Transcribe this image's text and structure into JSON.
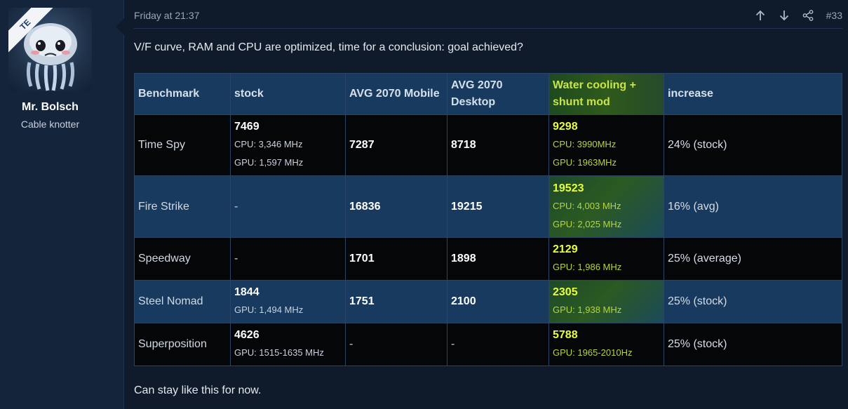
{
  "post": {
    "date": "Friday at 21:37",
    "number": "#33",
    "intro": "V/F curve, RAM and CPU are optimized, time for a conclusion: goal achieved?",
    "outro": "Can stay like this for now."
  },
  "user": {
    "name": "Mr. Bolsch",
    "title": "Cable knotter",
    "avatar_badge": "TE"
  },
  "icons": {
    "up": "arrow-up-icon",
    "down": "arrow-down-icon",
    "share": "share-icon"
  },
  "colors": {
    "background": "#0f1a2b",
    "table_blue": "#173a5e",
    "table_dark": "#050608",
    "highlight": "#d8f23c"
  },
  "table": {
    "headers": [
      "Benchmark",
      "stock",
      "AVG 2070 Mobile",
      "AVG 2070 Desktop",
      "Water cooling + shunt mod",
      "increase"
    ],
    "rows": [
      {
        "benchmark": "Time Spy",
        "stock": {
          "main": "7469",
          "sub1": "CPU: 3,346 MHz",
          "sub2": "GPU: 1,597 MHz"
        },
        "mobile": "7287",
        "desktop": "8718",
        "water": {
          "main": "9298",
          "sub1": "CPU: 3990MHz",
          "sub2": "GPU: 1963MHz"
        },
        "increase": "24% (stock)"
      },
      {
        "benchmark": "Fire Strike",
        "stock": {
          "main": "-"
        },
        "mobile": "16836",
        "desktop": "19215",
        "water": {
          "main": "19523",
          "sub1": "CPU: 4,003 MHz",
          "sub2": "GPU: 2,025 MHz"
        },
        "increase": "16% (avg)"
      },
      {
        "benchmark": "Speedway",
        "stock": {
          "main": "-"
        },
        "mobile": "1701",
        "desktop": "1898",
        "water": {
          "main": "2129",
          "sub1": "GPU: 1,986 MHz"
        },
        "increase": "25% (average)"
      },
      {
        "benchmark": "Steel Nomad",
        "stock": {
          "main": "1844",
          "sub1": "GPU: 1,494 MHz"
        },
        "mobile": "1751",
        "desktop": "2100",
        "water": {
          "main": "2305",
          "sub1": "GPU: 1,938 MHz"
        },
        "increase": "25% (stock)"
      },
      {
        "benchmark": "Superposition",
        "stock": {
          "main": "4626",
          "sub1": "GPU: 1515-1635 MHz"
        },
        "mobile": "-",
        "desktop": "-",
        "water": {
          "main": "5788",
          "sub1": "GPU: 1965-2010Hz"
        },
        "increase": "25% (stock)"
      }
    ]
  }
}
